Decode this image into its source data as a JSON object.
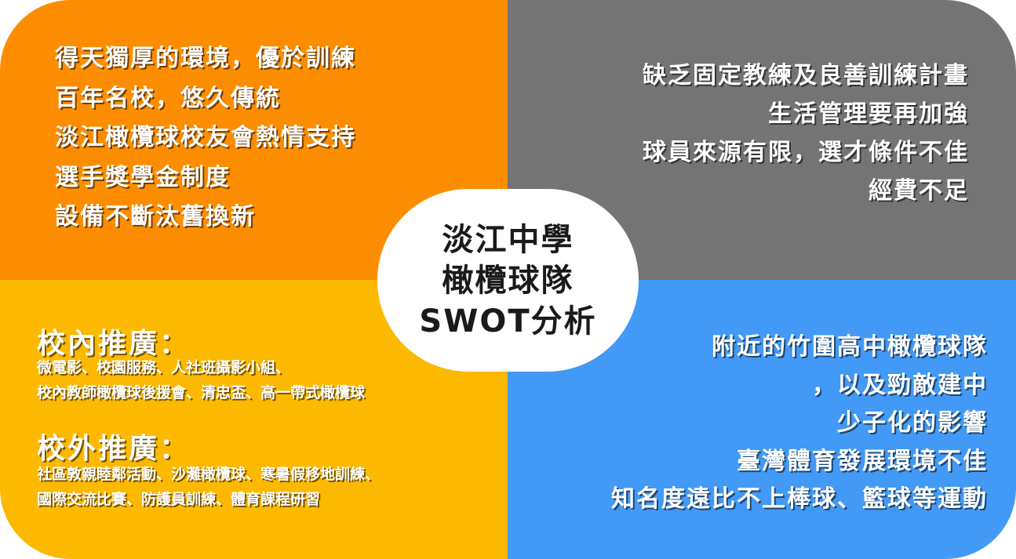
{
  "center": {
    "lines": [
      "淡江中學",
      "橄欖球隊",
      "SWOT分析"
    ]
  },
  "strengths": {
    "lines": [
      "得天獨厚的環境，優於訓練",
      "百年名校，悠久傳統",
      "淡江橄欖球校友會熱情支持",
      "選手獎學金制度",
      "設備不斷汰舊換新"
    ]
  },
  "weaknesses": {
    "lines": [
      "缺乏固定教練及良善訓練計畫",
      "生活管理要再加強",
      "球員來源有限，選才條件不佳",
      "經費不足"
    ]
  },
  "opportunities": {
    "internal_heading": "校內推廣：",
    "internal_lines": [
      "微電影、校園服務、人社班攝影小組、",
      "校內教師橄欖球後援會、清忠盃、高一帶式橄欖球"
    ],
    "external_heading": "校外推廣：",
    "external_lines": [
      "社區敦親睦鄰活動、沙灘橄欖球、寒暑假移地訓練、",
      "國際交流比賽、防護員訓練、體育課程研習"
    ]
  },
  "threats": {
    "lines": [
      "附近的竹圍高中橄欖球隊",
      "，以及勁敵建中",
      "少子化的影響",
      "臺灣體育發展環境不佳",
      "知名度遠比不上棒球、籃球等運動"
    ]
  },
  "colors": {
    "strengths": "#fd8d00",
    "weaknesses": "#747474",
    "opportunities": "#fdb800",
    "threats": "#4299f6"
  }
}
